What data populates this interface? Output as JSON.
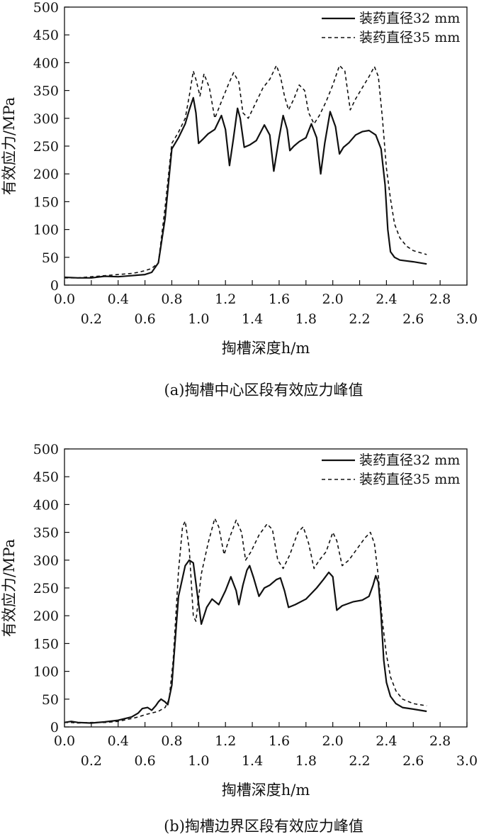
{
  "chart_data": [
    {
      "type": "line",
      "xlabel": "掏槽深度h/m",
      "ylabel": "有效应力/MPa",
      "caption": "(a)掏槽中心区段有效应力峰值",
      "xlim": [
        0,
        3.0
      ],
      "ylim": [
        0,
        500
      ],
      "xticks_upper": [
        "0.0",
        "0.4",
        "0.8",
        "1.2",
        "1.6",
        "2.0",
        "2.4",
        "2.8"
      ],
      "xticks_lower": [
        "0.2",
        "0.6",
        "1.0",
        "1.4",
        "1.8",
        "2.2",
        "2.6",
        "3.0"
      ],
      "yticks": [
        "0",
        "50",
        "100",
        "150",
        "200",
        "250",
        "300",
        "350",
        "400",
        "450",
        "500"
      ],
      "legend_position": "top-right",
      "series": [
        {
          "name": "装药直径32 mm",
          "style": "solid",
          "color": "#111111",
          "x": [
            0.0,
            0.1,
            0.2,
            0.3,
            0.4,
            0.5,
            0.55,
            0.6,
            0.65,
            0.7,
            0.75,
            0.8,
            0.85,
            0.9,
            0.93,
            0.96,
            0.98,
            1.0,
            1.03,
            1.07,
            1.12,
            1.17,
            1.2,
            1.23,
            1.26,
            1.29,
            1.31,
            1.34,
            1.38,
            1.43,
            1.49,
            1.53,
            1.56,
            1.6,
            1.63,
            1.66,
            1.68,
            1.71,
            1.75,
            1.8,
            1.84,
            1.88,
            1.91,
            1.94,
            1.98,
            2.02,
            2.05,
            2.08,
            2.12,
            2.17,
            2.22,
            2.27,
            2.32,
            2.36,
            2.39,
            2.41,
            2.43,
            2.46,
            2.5,
            2.6,
            2.7
          ],
          "y": [
            14,
            13,
            13,
            16,
            15,
            17,
            18,
            19,
            23,
            40,
            120,
            245,
            265,
            290,
            315,
            337,
            310,
            255,
            262,
            272,
            280,
            305,
            280,
            215,
            265,
            318,
            300,
            248,
            252,
            260,
            288,
            270,
            205,
            265,
            305,
            280,
            242,
            250,
            258,
            265,
            290,
            265,
            200,
            255,
            312,
            285,
            236,
            248,
            256,
            270,
            276,
            278,
            270,
            245,
            180,
            100,
            60,
            50,
            45,
            42,
            38
          ]
        },
        {
          "name": "装药直径35 mm",
          "style": "dashed",
          "color": "#111111",
          "x": [
            0.0,
            0.1,
            0.2,
            0.3,
            0.4,
            0.5,
            0.55,
            0.6,
            0.65,
            0.7,
            0.75,
            0.8,
            0.85,
            0.9,
            0.93,
            0.96,
            0.98,
            1.01,
            1.04,
            1.08,
            1.12,
            1.17,
            1.22,
            1.26,
            1.3,
            1.33,
            1.37,
            1.42,
            1.48,
            1.53,
            1.58,
            1.61,
            1.64,
            1.67,
            1.71,
            1.75,
            1.79,
            1.82,
            1.86,
            1.9,
            1.95,
            2.0,
            2.05,
            2.09,
            2.13,
            2.17,
            2.22,
            2.27,
            2.31,
            2.34,
            2.37,
            2.4,
            2.43,
            2.46,
            2.5,
            2.55,
            2.6,
            2.7
          ],
          "y": [
            13,
            13,
            15,
            17,
            19,
            21,
            23,
            26,
            30,
            40,
            140,
            255,
            275,
            300,
            340,
            385,
            370,
            340,
            380,
            355,
            300,
            330,
            360,
            382,
            365,
            310,
            300,
            325,
            355,
            370,
            395,
            375,
            340,
            315,
            335,
            360,
            350,
            310,
            290,
            305,
            330,
            360,
            395,
            385,
            315,
            335,
            355,
            375,
            393,
            375,
            300,
            210,
            155,
            110,
            85,
            70,
            62,
            55
          ]
        }
      ]
    },
    {
      "type": "line",
      "xlabel": "掏槽深度h/m",
      "ylabel": "有效应力/MPa",
      "caption": "(b)掏槽边界区段有效应力峰值",
      "xlim": [
        0,
        3.0
      ],
      "ylim": [
        0,
        500
      ],
      "xticks_upper": [
        "0.0",
        "0.4",
        "0.8",
        "1.2",
        "1.6",
        "2.0",
        "2.4",
        "2.8"
      ],
      "xticks_lower": [
        "0.2",
        "0.6",
        "1.0",
        "1.4",
        "1.8",
        "2.2",
        "2.6",
        "3.0"
      ],
      "yticks": [
        "0",
        "50",
        "100",
        "150",
        "200",
        "250",
        "300",
        "350",
        "400",
        "450",
        "500"
      ],
      "legend_position": "top-right",
      "series": [
        {
          "name": "装药直径32 mm",
          "style": "solid",
          "color": "#111111",
          "x": [
            0.0,
            0.05,
            0.1,
            0.2,
            0.3,
            0.4,
            0.5,
            0.55,
            0.58,
            0.62,
            0.65,
            0.68,
            0.7,
            0.72,
            0.75,
            0.77,
            0.8,
            0.85,
            0.9,
            0.93,
            0.96,
            0.99,
            1.02,
            1.06,
            1.1,
            1.15,
            1.2,
            1.24,
            1.28,
            1.3,
            1.33,
            1.36,
            1.38,
            1.41,
            1.45,
            1.49,
            1.53,
            1.58,
            1.61,
            1.64,
            1.67,
            1.72,
            1.8,
            1.88,
            1.93,
            1.97,
            2.0,
            2.03,
            2.07,
            2.15,
            2.22,
            2.27,
            2.3,
            2.32,
            2.34,
            2.36,
            2.38,
            2.4,
            2.43,
            2.47,
            2.52,
            2.6,
            2.7
          ],
          "y": [
            8,
            10,
            8,
            7,
            9,
            12,
            18,
            25,
            33,
            35,
            30,
            38,
            45,
            50,
            45,
            40,
            75,
            235,
            290,
            300,
            295,
            240,
            185,
            215,
            230,
            220,
            245,
            270,
            245,
            220,
            255,
            282,
            290,
            268,
            235,
            250,
            255,
            265,
            268,
            245,
            215,
            220,
            230,
            250,
            265,
            278,
            270,
            210,
            218,
            225,
            228,
            235,
            255,
            272,
            260,
            200,
            120,
            80,
            55,
            42,
            35,
            32,
            28
          ]
        },
        {
          "name": "装药直径35 mm",
          "style": "dashed",
          "color": "#111111",
          "x": [
            0.0,
            0.05,
            0.1,
            0.2,
            0.3,
            0.4,
            0.5,
            0.55,
            0.6,
            0.65,
            0.7,
            0.75,
            0.78,
            0.81,
            0.85,
            0.88,
            0.9,
            0.93,
            0.96,
            0.98,
            1.02,
            1.07,
            1.12,
            1.15,
            1.19,
            1.23,
            1.28,
            1.32,
            1.35,
            1.39,
            1.45,
            1.51,
            1.55,
            1.59,
            1.63,
            1.68,
            1.74,
            1.78,
            1.82,
            1.86,
            1.9,
            1.95,
            2.0,
            2.03,
            2.07,
            2.12,
            2.18,
            2.24,
            2.28,
            2.31,
            2.34,
            2.37,
            2.4,
            2.43,
            2.47,
            2.52,
            2.6,
            2.7
          ],
          "y": [
            8,
            8,
            7,
            8,
            8,
            10,
            15,
            18,
            22,
            25,
            28,
            35,
            50,
            120,
            280,
            360,
            370,
            320,
            200,
            190,
            275,
            330,
            375,
            360,
            310,
            340,
            372,
            350,
            300,
            315,
            345,
            365,
            355,
            300,
            285,
            310,
            350,
            360,
            330,
            285,
            300,
            315,
            350,
            335,
            290,
            300,
            320,
            340,
            350,
            330,
            270,
            190,
            130,
            90,
            65,
            50,
            42,
            38
          ]
        }
      ]
    }
  ]
}
